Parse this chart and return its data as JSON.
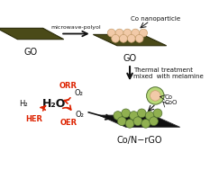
{
  "bg_color": "#ffffff",
  "go_sheet_color": "#4a4a18",
  "go_sheet_edge": "#2a2a08",
  "co_nano_fill": "#f2caa8",
  "co_nano_edge": "#c8a070",
  "co_shell_fill": "#90b050",
  "co_shell_edge": "#507030",
  "co_core_fill": "#f2caa8",
  "co_core_edge": "#c8a070",
  "rgo_fill": "#101010",
  "rgo_edge": "#303030",
  "arrow_color": "#111111",
  "red_color": "#dd2200",
  "text_color": "#111111",
  "label_go1": "GO",
  "label_go2": "GO",
  "label_co_nano": "Co nanoparticle",
  "label_thermal": "Thermal treatment\nmixed  with melamine",
  "label_bot": "Co/N−rGO",
  "label_microwave": "microwave-polyol",
  "label_water": "H₂O",
  "label_h2": "H₂",
  "label_o2_top": "O₂",
  "label_o2_bot": "O₂",
  "label_orr": "ORR",
  "label_oer": "OER",
  "label_her": "HER",
  "label_co": "Co",
  "label_coo": "CoO",
  "figw": 2.33,
  "figh": 1.89,
  "dpi": 100
}
